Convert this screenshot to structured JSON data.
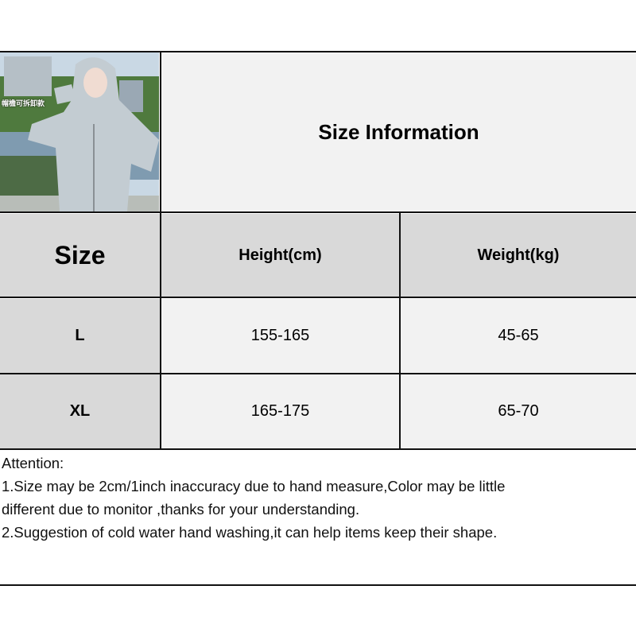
{
  "photo": {
    "caption": "帽檐可拆卸款",
    "alt_subject": "woman in light grey hooded sun-protection jacket"
  },
  "title": "Size Information",
  "table": {
    "headers": [
      "Size",
      "Height(cm)",
      "Weight(kg)"
    ],
    "rows": [
      {
        "size": "L",
        "height": "155-165",
        "weight": "45-65"
      },
      {
        "size": "XL",
        "height": "165-175",
        "weight": "65-70"
      }
    ]
  },
  "notes": {
    "heading": "Attention:",
    "line1a": "1.Size may be 2cm/1inch inaccuracy due to hand measure,Color may be little",
    "line1b": "different due to monitor ,thanks for your understanding.",
    "line2": "2.Suggestion of cold water hand washing,it can help items keep their shape."
  },
  "colors": {
    "header_bg": "#d9d9d9",
    "cell_bg": "#f2f2f2",
    "border": "#111111"
  }
}
